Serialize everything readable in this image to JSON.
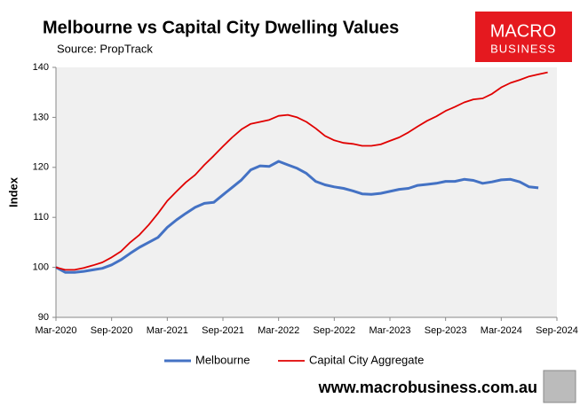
{
  "chart_data": {
    "type": "line",
    "title": "Melbourne vs Capital City Dwelling Values",
    "subtitle": "Source: PropTrack",
    "y_label": "Index",
    "categories": [
      "Mar-2020",
      null,
      null,
      null,
      null,
      null,
      "Sep-2020",
      null,
      null,
      null,
      null,
      null,
      "Mar-2021",
      null,
      null,
      null,
      null,
      null,
      "Sep-2021",
      null,
      null,
      null,
      null,
      null,
      "Mar-2022",
      null,
      null,
      null,
      null,
      null,
      "Sep-2022",
      null,
      null,
      null,
      null,
      null,
      "Mar-2023",
      null,
      null,
      null,
      null,
      null,
      "Sep-2023",
      null,
      null,
      null,
      null,
      null,
      "Mar-2024",
      null,
      null,
      null,
      null,
      null,
      "Sep-2024"
    ],
    "series": [
      {
        "name": "Melbourne",
        "color": "#4472c4",
        "values": [
          100,
          99,
          99,
          99.2,
          99.5,
          99.8,
          100.5,
          101.5,
          102.8,
          104,
          105,
          106,
          108,
          109.5,
          110.8,
          112,
          112.8,
          113,
          114.5,
          116,
          117.5,
          119.5,
          120.3,
          120.2,
          121.2,
          120.5,
          119.8,
          118.8,
          117.2,
          116.5,
          116.1,
          115.8,
          115.3,
          114.7,
          114.6,
          114.8,
          115.2,
          115.6,
          115.8,
          116.4,
          116.6,
          116.8,
          117.2,
          117.2,
          117.6,
          117.4,
          116.8,
          117.1,
          117.5,
          117.6,
          117.1,
          116.1,
          115.9,
          null,
          null
        ]
      },
      {
        "name": "Capital City Aggregate",
        "color": "#e00000",
        "values": [
          100,
          99.5,
          99.5,
          99.9,
          100.4,
          101,
          102,
          103.2,
          105,
          106.5,
          108.5,
          110.8,
          113.3,
          115.2,
          117,
          118.5,
          120.5,
          122.3,
          124.2,
          126,
          127.6,
          128.7,
          129.1,
          129.5,
          130.3,
          130.5,
          130,
          129.1,
          127.8,
          126.3,
          125.4,
          124.9,
          124.7,
          124.3,
          124.3,
          124.6,
          125.3,
          126,
          127,
          128.2,
          129.3,
          130.2,
          131.3,
          132.1,
          133,
          133.6,
          133.8,
          134.7,
          136,
          136.9,
          137.5,
          138.2,
          138.6,
          139,
          null
        ]
      }
    ],
    "ylim": [
      90,
      140
    ],
    "yticks": [
      90,
      100,
      110,
      120,
      130,
      140
    ],
    "grid": false,
    "legend": "bottom"
  },
  "logo": {
    "line1": "MACRO",
    "line2": "BUSINESS"
  },
  "footer": "www.macrobusiness.com.au"
}
